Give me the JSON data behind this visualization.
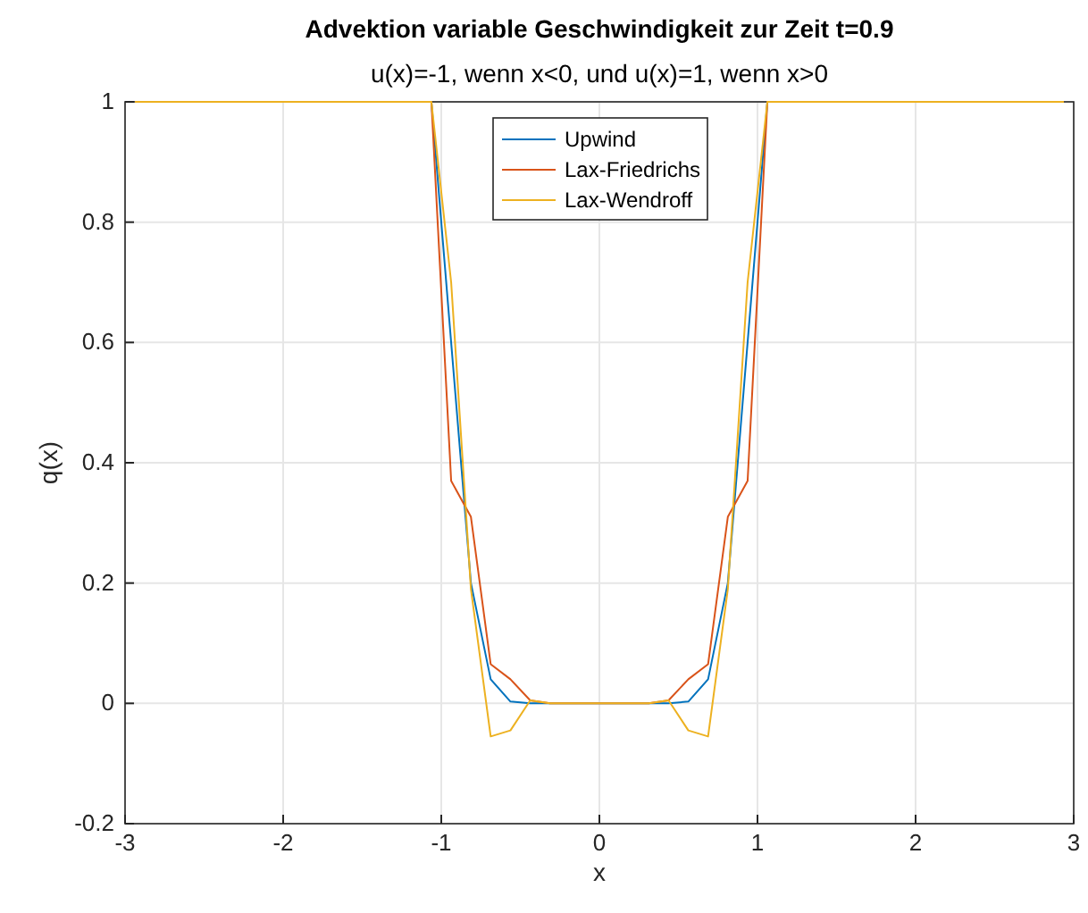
{
  "chart_data": {
    "type": "line",
    "title": "Advektion variable Geschwindigkeit zur Zeit t=0.9",
    "subtitle": "u(x)=-1, wenn x<0, und u(x)=1, wenn x>0",
    "xlabel": "x",
    "ylabel": "q(x)",
    "x": [
      -2.9375,
      -1.0625,
      -0.9375,
      -0.8125,
      -0.6875,
      -0.5625,
      -0.4375,
      -0.3125,
      -0.1875,
      -0.0625,
      0.0625,
      0.1875,
      0.3125,
      0.4375,
      0.5625,
      0.6875,
      0.8125,
      0.9375,
      1.0625,
      2.9375
    ],
    "series": [
      {
        "name": "Upwind",
        "color": "#0072bd",
        "values": [
          1,
          1,
          0.6,
          0.2,
          0.04,
          0.003,
          0,
          0,
          0,
          0,
          0,
          0,
          0,
          0,
          0.003,
          0.04,
          0.2,
          0.6,
          1,
          1
        ]
      },
      {
        "name": "Lax-Friedrichs",
        "color": "#d95319",
        "values": [
          1,
          1,
          0.37,
          0.31,
          0.065,
          0.04,
          0.005,
          0,
          0,
          0,
          0,
          0,
          0,
          0.005,
          0.04,
          0.065,
          0.31,
          0.37,
          1,
          1
        ]
      },
      {
        "name": "Lax-Wendroff",
        "color": "#edb120",
        "values": [
          1,
          1,
          0.7,
          0.19,
          -0.055,
          -0.045,
          0.005,
          0,
          0,
          0,
          0,
          0,
          0,
          0.005,
          -0.045,
          -0.055,
          0.19,
          0.7,
          1,
          1
        ]
      }
    ],
    "xlim": [
      -3,
      3
    ],
    "ylim": [
      -0.2,
      1
    ],
    "xticks": [
      -3,
      -2,
      -1,
      0,
      1,
      2,
      3
    ],
    "yticks": [
      -0.2,
      0,
      0.2,
      0.4,
      0.6,
      0.8,
      1
    ],
    "grid": true,
    "legend": "top",
    "line_style": "solid"
  }
}
